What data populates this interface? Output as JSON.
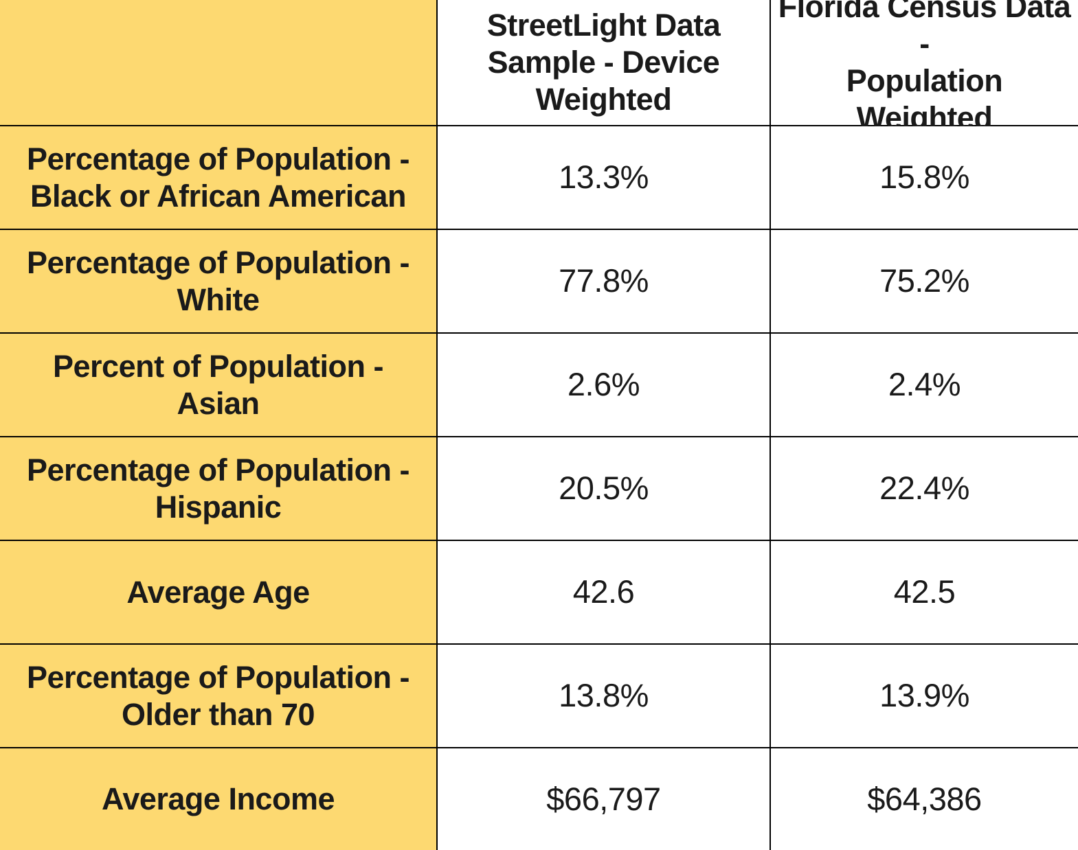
{
  "chart_data": {
    "type": "table",
    "columns": [
      "",
      "StreetLight Data\nSample - Device\nWeighted",
      "Florida Census Data -\nPopulation Weighted"
    ],
    "rows": [
      {
        "label": "Percentage of Population -\nBlack or African American",
        "values": [
          "13.3%",
          "15.8%"
        ]
      },
      {
        "label": "Percentage of Population -\nWhite",
        "values": [
          "77.8%",
          "75.2%"
        ]
      },
      {
        "label": "Percent of Population - Asian",
        "values": [
          "2.6%",
          "2.4%"
        ]
      },
      {
        "label": "Percentage of Population -\nHispanic",
        "values": [
          "20.5%",
          "22.4%"
        ]
      },
      {
        "label": "Average Age",
        "values": [
          "42.6",
          "42.5"
        ]
      },
      {
        "label": "Percentage of Population -\nOlder than 70",
        "values": [
          "13.8%",
          "13.9%"
        ]
      },
      {
        "label": "Average Income",
        "values": [
          "$66,797",
          "$64,386"
        ]
      }
    ]
  },
  "colors": {
    "label_background": "#fdd971",
    "border": "#000000",
    "text": "#1a1a1a"
  }
}
